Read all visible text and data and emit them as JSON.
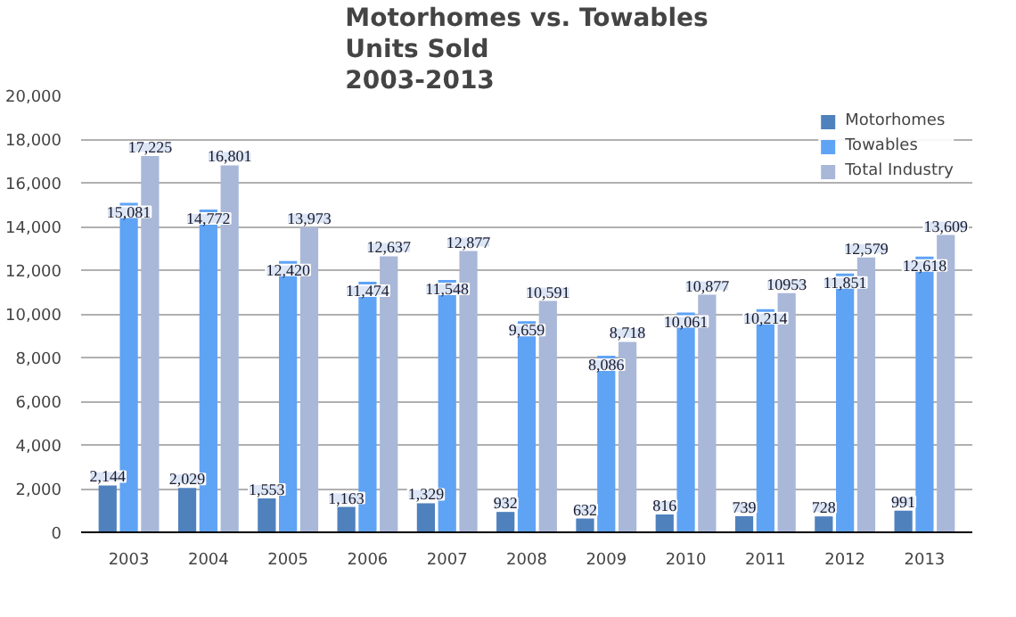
{
  "chart_data": {
    "type": "bar",
    "title": "Motorhomes vs. Towables\nUnits Sold\n2003-2013",
    "categories": [
      "2003",
      "2004",
      "2005",
      "2006",
      "2007",
      "2008",
      "2009",
      "2010",
      "2011",
      "2012",
      "2013"
    ],
    "series": [
      {
        "name": "Motorhomes",
        "color": "#4f81bd",
        "values": [
          2144,
          2029,
          1553,
          1163,
          1329,
          932,
          632,
          816,
          739,
          728,
          991
        ],
        "value_labels": [
          "2,144",
          "2,029",
          "1,553",
          "1,163",
          "1,329",
          "932",
          "632",
          "816",
          "739",
          "728",
          "991"
        ]
      },
      {
        "name": "Towables",
        "color": "#5fa3f5",
        "values": [
          15081,
          14772,
          12420,
          11474,
          11548,
          9659,
          8086,
          10061,
          10214,
          11851,
          12618
        ],
        "value_labels": [
          "15,081",
          "14,772",
          "12,420",
          "11,474",
          "11,548",
          "9,659",
          "8,086",
          "10,061",
          "10,214",
          "11,851",
          "12,618"
        ]
      },
      {
        "name": "Total Industry",
        "color": "#a9b8d8",
        "values": [
          17225,
          16801,
          13973,
          12637,
          12877,
          10591,
          8718,
          10877,
          10953,
          12579,
          13609
        ],
        "value_labels": [
          "17,225",
          "16,801",
          "13,973",
          "12,637",
          "12,877",
          "10,591",
          "8,718",
          "10,877",
          "10953",
          "12,579",
          "13,609"
        ]
      }
    ],
    "ylim": [
      0,
      20000
    ],
    "yticks": [
      0,
      {
        "value": 2000,
        "label": "2,000"
      },
      {
        "value": 4000,
        "label": "4,000"
      },
      {
        "value": 6000,
        "label": "6,000"
      },
      {
        "value": 8000,
        "label": "8,000"
      },
      {
        "value": 10000,
        "label": "10,000"
      },
      {
        "value": 12000,
        "label": "12,000"
      },
      {
        "value": 14000,
        "label": "14,000"
      },
      {
        "value": 16000,
        "label": "16,000"
      },
      {
        "value": 18000,
        "label": "18,000"
      },
      {
        "value": 20000,
        "label": "20,000"
      }
    ],
    "grid": "y",
    "legend": "top right"
  }
}
